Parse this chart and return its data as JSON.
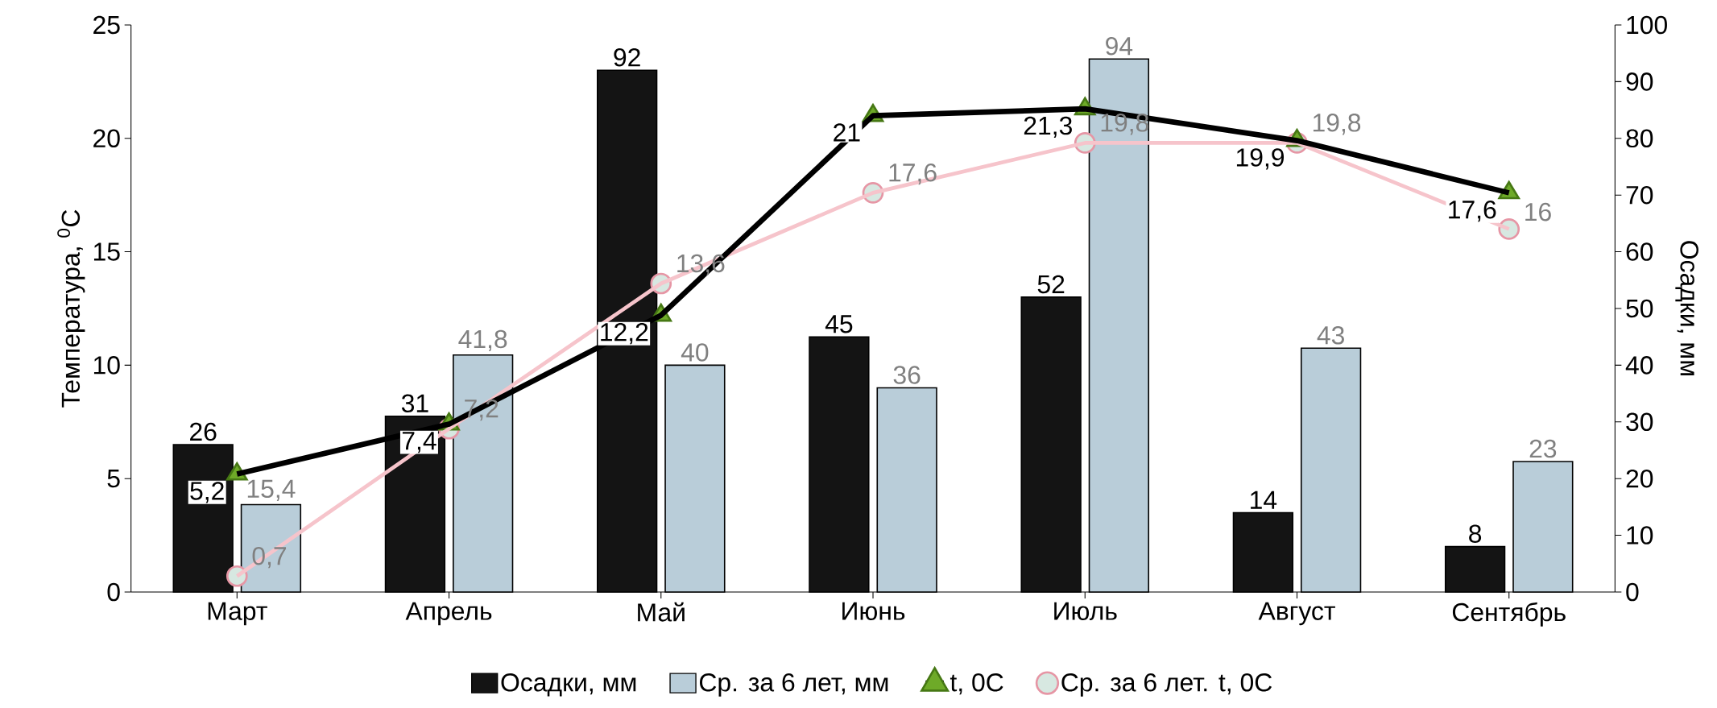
{
  "chart_data": {
    "type": "bar",
    "categories": [
      "Март",
      "Апрель",
      "Май",
      "Июнь",
      "Июль",
      "Август",
      "Сентябрь"
    ],
    "ylabel": "Температура, $^{0}$С",
    "y2label": "Осадки, мм",
    "ylim": [
      0,
      25
    ],
    "yticks": [
      0,
      5,
      10,
      15,
      20,
      25
    ],
    "y2lim": [
      0,
      100
    ],
    "y2ticks": [
      0,
      10,
      20,
      30,
      40,
      50,
      60,
      70,
      80,
      90,
      100
    ],
    "grid": false,
    "legend": "bottom",
    "series": [
      {
        "name": "Осадки, мм",
        "axis": "y2",
        "color": "#141414",
        "values": [
          26,
          31,
          92,
          45,
          52,
          14,
          8
        ],
        "value_labels": [
          "26",
          "31",
          "92",
          "45",
          "52",
          "14",
          "8"
        ]
      },
      {
        "name": "Ср. за 6 лет, мм",
        "axis": "y2",
        "color": "#b9cdd9",
        "values": [
          15.4,
          41.8,
          40,
          36,
          94,
          43,
          23
        ],
        "value_labels": [
          "15,4",
          "41,8",
          "40",
          "36",
          "94",
          "43",
          "23"
        ]
      },
      {
        "name": "t, 0C",
        "type": "line",
        "axis": "y",
        "color": "#000000",
        "marker": "triangle",
        "values": [
          5.2,
          7.4,
          12.2,
          21,
          21.3,
          19.9,
          17.6
        ],
        "value_labels": [
          "5,2",
          "7,4",
          "12,2",
          "21",
          "21,3",
          "19,9",
          "17,6"
        ]
      },
      {
        "name": "Ср. за 6 лет. t, 0C",
        "type": "line",
        "axis": "y",
        "color": "#f6c4cb",
        "marker": "circle",
        "values": [
          0.7,
          7.2,
          13.6,
          17.6,
          19.8,
          19.8,
          16
        ],
        "value_labels": [
          "0,7",
          "7,2",
          "13,6",
          "17,6",
          "19,8",
          "19,8",
          "16"
        ]
      }
    ]
  }
}
